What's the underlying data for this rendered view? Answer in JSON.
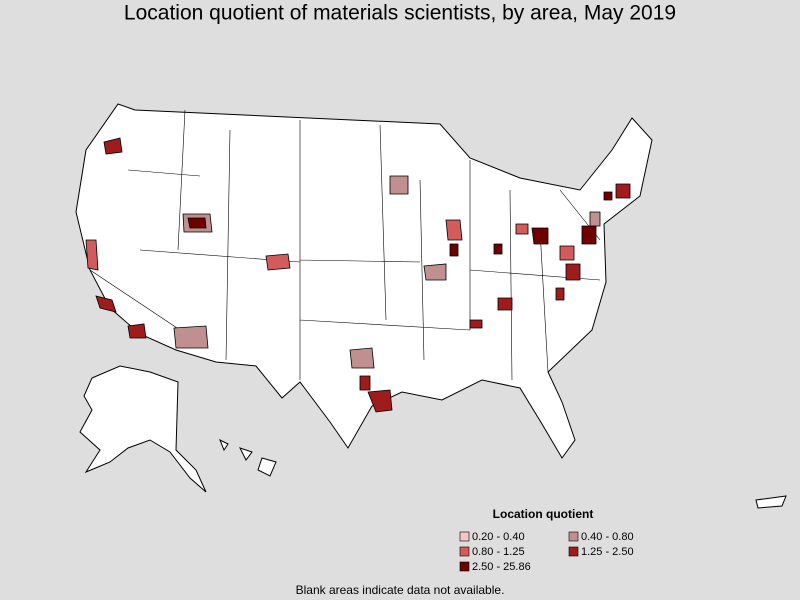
{
  "title": "Location quotient of materials scientists, by area, May 2019",
  "legend": {
    "title": "Location quotient",
    "items": [
      {
        "label": "0.20 - 0.40",
        "color": "#f5c4c4"
      },
      {
        "label": "0.40 - 0.80",
        "color": "#c09090"
      },
      {
        "label": "0.80 - 1.25",
        "color": "#d35b5b"
      },
      {
        "label": "1.25 - 2.50",
        "color": "#a01c1c"
      },
      {
        "label": "2.50 - 25.86",
        "color": "#6e0000"
      }
    ]
  },
  "note": "Blank areas indicate data not available."
}
